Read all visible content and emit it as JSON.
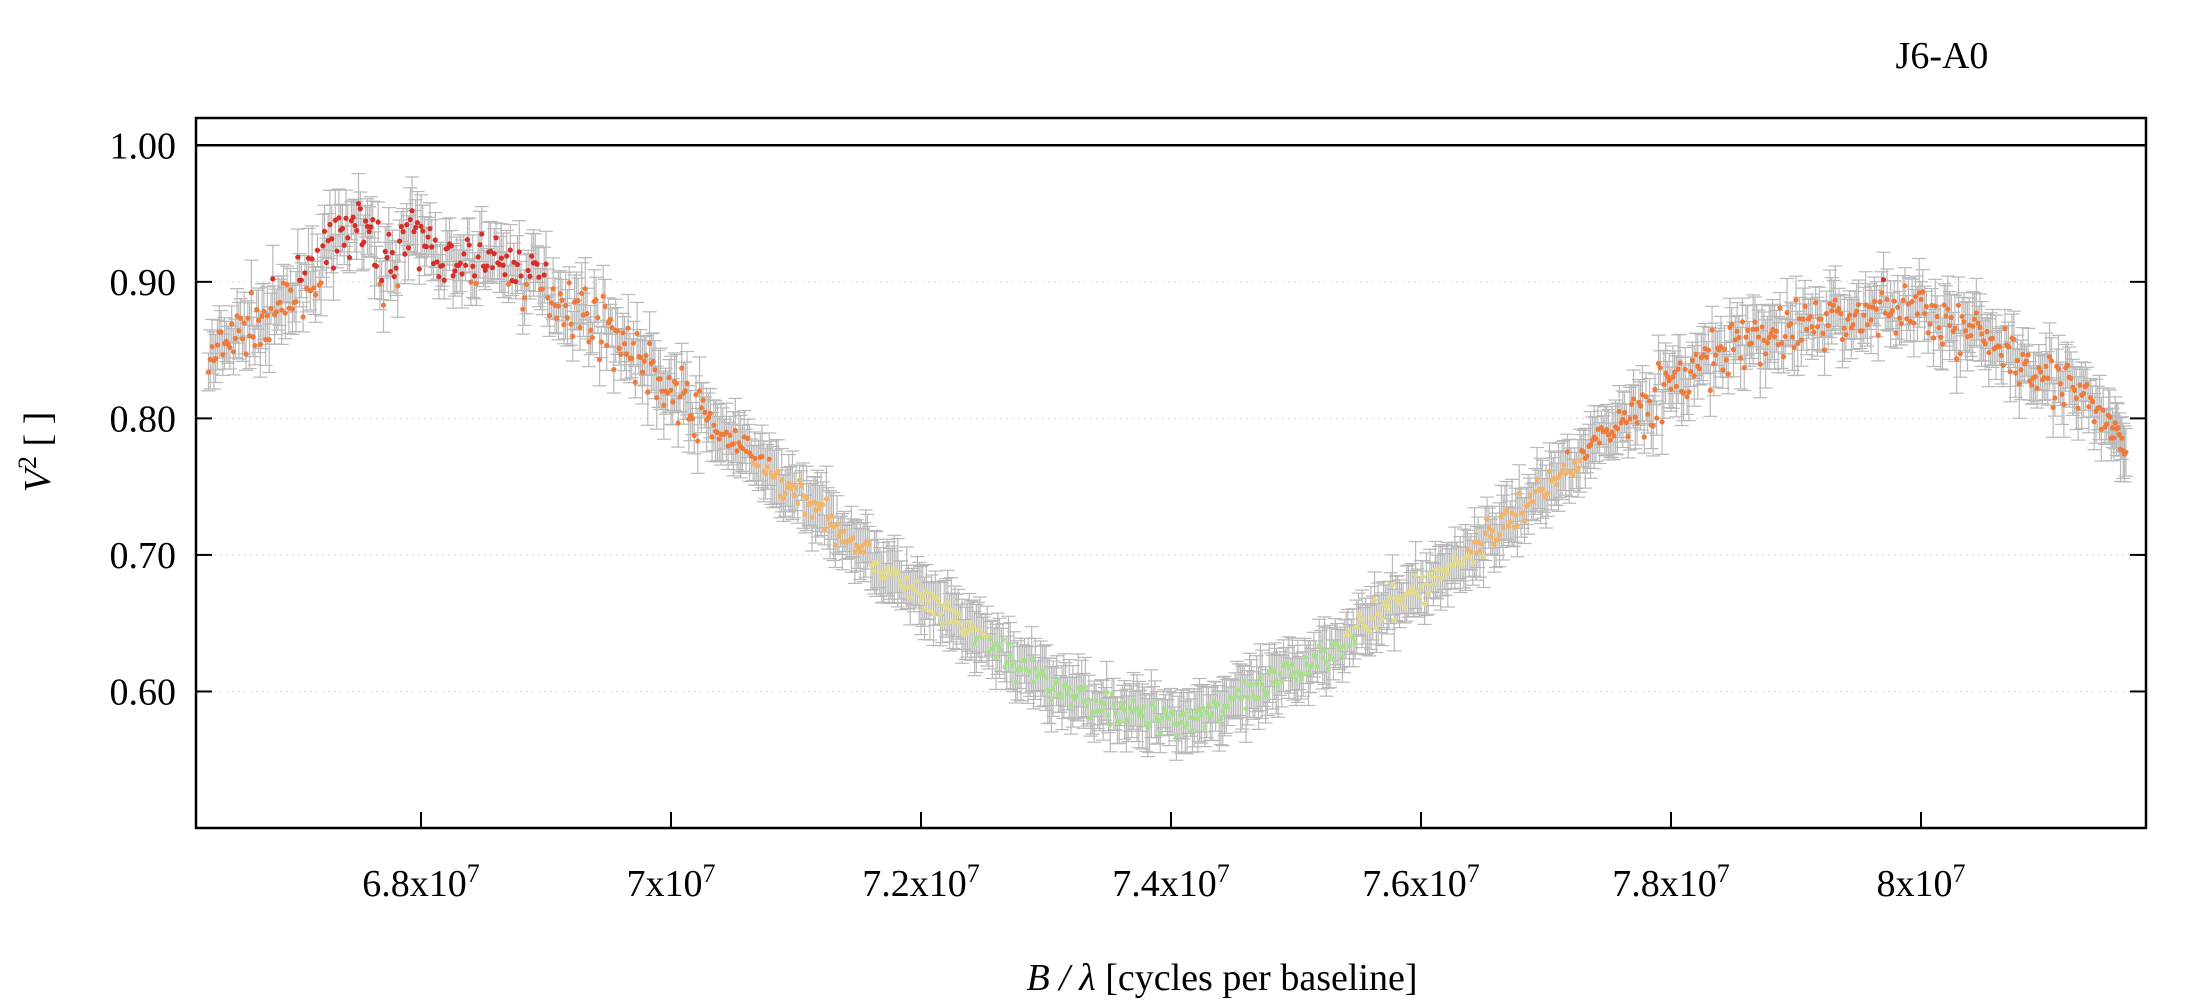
{
  "chart_data": {
    "type": "scatter",
    "title": "J6-A0",
    "xlabel": {
      "italic": "B / λ",
      "rest": " [cycles per baseline]"
    },
    "ylabel": {
      "italic": "V",
      "sup": "2",
      "rest": " [ ]"
    },
    "xlim": [
      66200000,
      81800000
    ],
    "ylim": [
      0.5,
      1.02
    ],
    "reference_line_y": 1.0,
    "x_ticks": [
      {
        "value": 68000000,
        "base": "6.8x10",
        "exp": "7"
      },
      {
        "value": 70000000,
        "base": "7x10",
        "exp": "7"
      },
      {
        "value": 72000000,
        "base": "7.2x10",
        "exp": "7"
      },
      {
        "value": 74000000,
        "base": "7.4x10",
        "exp": "7"
      },
      {
        "value": 76000000,
        "base": "7.6x10",
        "exp": "7"
      },
      {
        "value": 78000000,
        "base": "7.8x10",
        "exp": "7"
      },
      {
        "value": 80000000,
        "base": "8x10",
        "exp": "7"
      }
    ],
    "y_ticks": [
      {
        "value": 1.0,
        "label": "1.00"
      },
      {
        "value": 0.9,
        "label": "0.90"
      },
      {
        "value": 0.8,
        "label": "0.80"
      },
      {
        "value": 0.7,
        "label": "0.70"
      },
      {
        "value": 0.6,
        "label": "0.60"
      }
    ],
    "grid": "horizontal dotted",
    "colors": {
      "high": "#d62f2a",
      "upper": "#ee7a3c",
      "mid": "#f2b46a",
      "lower": "#e2d98a",
      "low": "#a8e08e",
      "errorbar": "#b8b8b8"
    },
    "series": [
      {
        "x": [
          66300000,
          66500000,
          66700000,
          66900000,
          67100000,
          67300000,
          67500000,
          67700000,
          67900000,
          68100000,
          68300000,
          68500000,
          68700000,
          68900000,
          69100000,
          69300000,
          69500000,
          69700000,
          69900000,
          70100000,
          70300000,
          70500000,
          70700000,
          70900000,
          71100000,
          71300000,
          71500000,
          71700000,
          71900000,
          72100000,
          72300000,
          72500000,
          72700000,
          72900000,
          73100000,
          73300000,
          73500000,
          73700000,
          73900000,
          74100000,
          74300000,
          74500000,
          74700000,
          74900000,
          75100000,
          75300000,
          75500000,
          75700000,
          75900000,
          76100000,
          76300000,
          76500000,
          76700000,
          76900000,
          77100000,
          77300000,
          77500000,
          77700000,
          77900000,
          78100000,
          78300000,
          78500000,
          78700000,
          78900000,
          79100000,
          79300000,
          79500000,
          79700000,
          79900000,
          80100000,
          80300000,
          80500000,
          80700000,
          80900000,
          81100000,
          81300000,
          81500000,
          81650000
        ],
        "y": [
          0.84,
          0.858,
          0.872,
          0.88,
          0.905,
          0.925,
          0.945,
          0.91,
          0.935,
          0.925,
          0.905,
          0.92,
          0.91,
          0.902,
          0.89,
          0.878,
          0.865,
          0.848,
          0.83,
          0.812,
          0.798,
          0.782,
          0.768,
          0.752,
          0.74,
          0.722,
          0.708,
          0.69,
          0.676,
          0.662,
          0.65,
          0.638,
          0.625,
          0.612,
          0.602,
          0.595,
          0.588,
          0.584,
          0.582,
          0.58,
          0.586,
          0.592,
          0.6,
          0.61,
          0.62,
          0.632,
          0.645,
          0.658,
          0.67,
          0.682,
          0.695,
          0.71,
          0.725,
          0.742,
          0.758,
          0.775,
          0.79,
          0.805,
          0.818,
          0.83,
          0.842,
          0.85,
          0.858,
          0.865,
          0.87,
          0.872,
          0.875,
          0.88,
          0.878,
          0.88,
          0.865,
          0.86,
          0.85,
          0.84,
          0.83,
          0.812,
          0.795,
          0.775
        ],
        "err": 0.018
      }
    ]
  }
}
